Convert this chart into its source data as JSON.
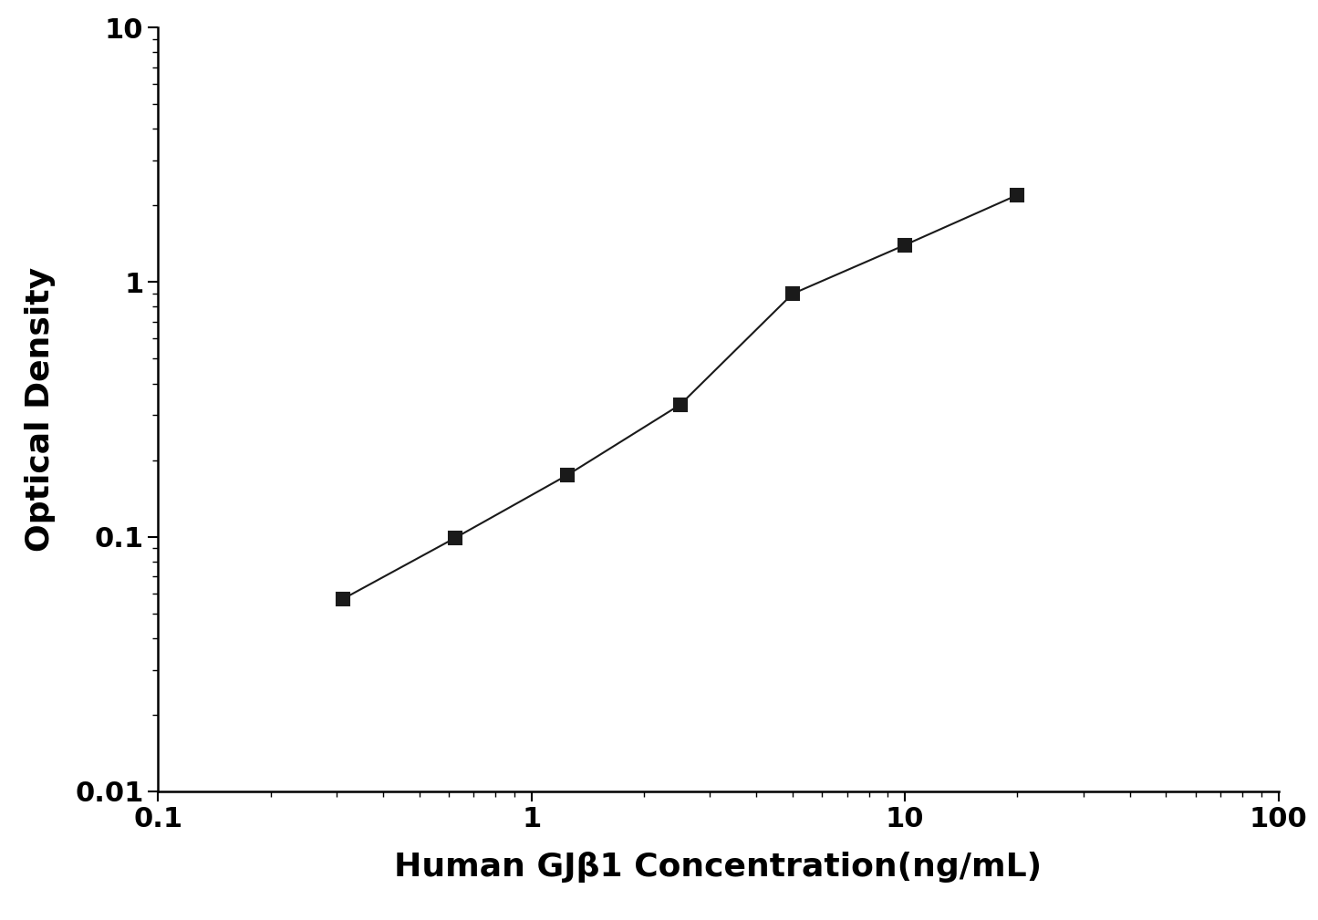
{
  "x": [
    0.313,
    0.625,
    1.25,
    2.5,
    5.0,
    10.0,
    20.0
  ],
  "y": [
    0.057,
    0.099,
    0.175,
    0.33,
    0.9,
    1.4,
    2.2
  ],
  "xlim": [
    0.1,
    100
  ],
  "ylim": [
    0.01,
    10
  ],
  "xlabel": "Human GJβ1 Concentration(ng/mL)",
  "ylabel": "Optical Density",
  "line_color": "#1a1a1a",
  "marker": "s",
  "marker_color": "#1a1a1a",
  "marker_size": 10,
  "linewidth": 1.5,
  "xlabel_fontsize": 26,
  "ylabel_fontsize": 26,
  "tick_fontsize": 22,
  "background_color": "#ffffff"
}
